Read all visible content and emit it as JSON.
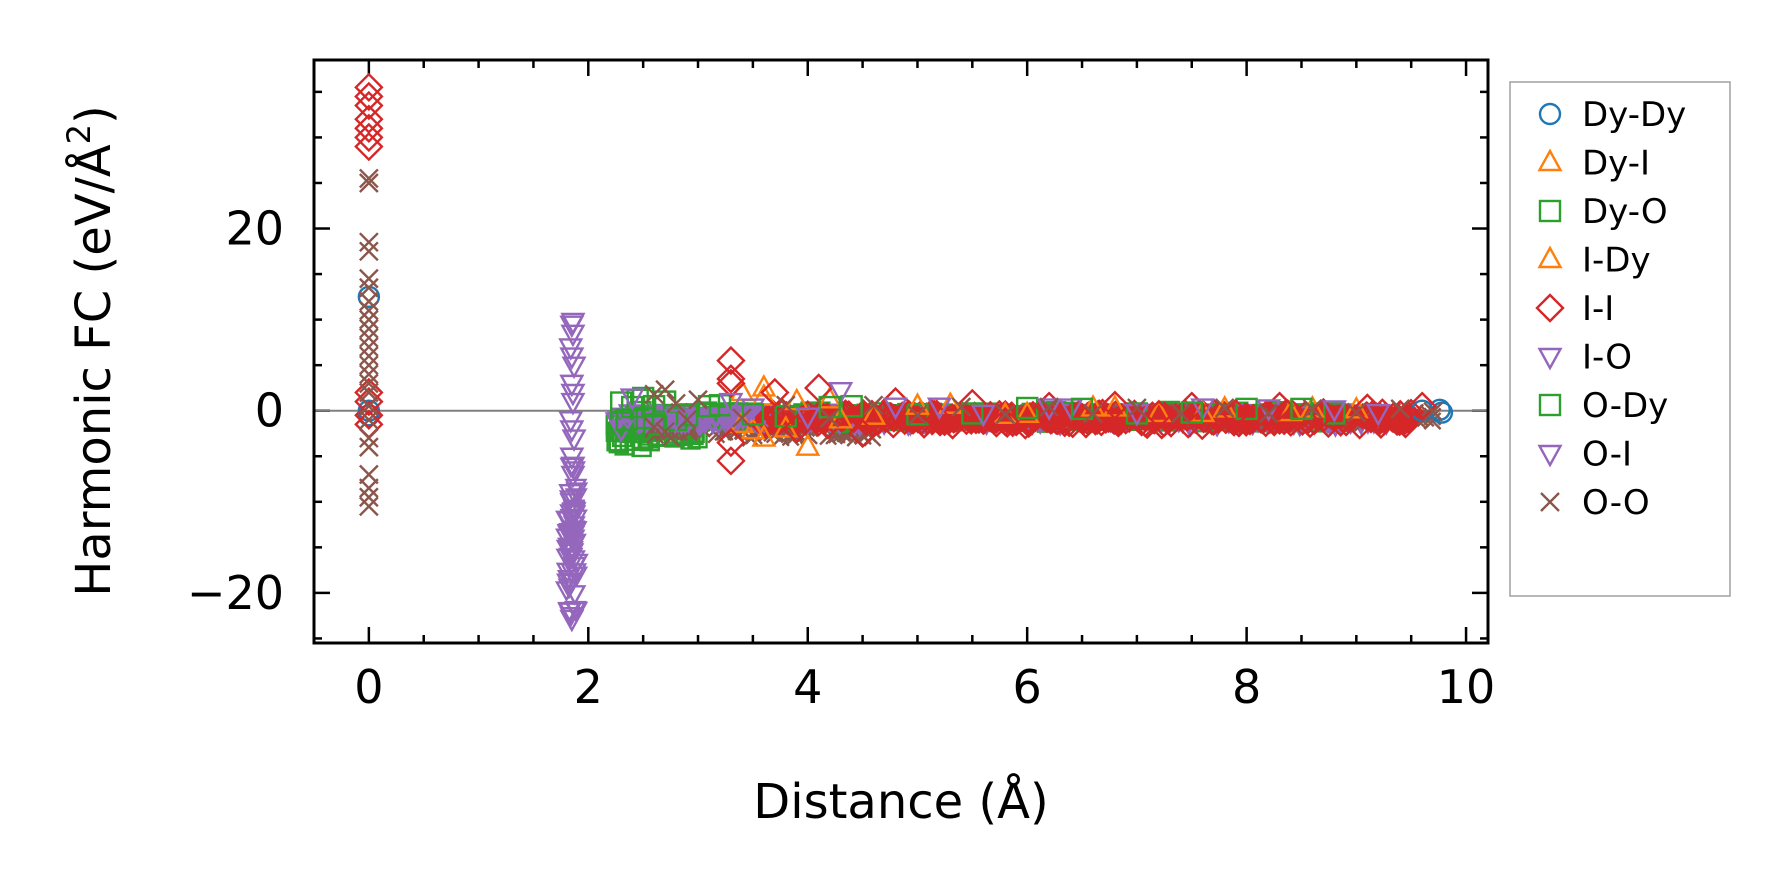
{
  "chart_data": {
    "type": "scatter",
    "xlabel": "Distance (Å)",
    "ylabel": "Harmonic FC (eV/Å²)",
    "ylabel_parts": {
      "main": "Harmonic FC (eV/Å",
      "sup": "2",
      "close": ")"
    },
    "xlim": [
      -0.5,
      10.2
    ],
    "ylim": [
      -25.5,
      38.5
    ],
    "xticks": [
      0,
      2,
      4,
      6,
      8,
      10
    ],
    "xtick_labels": [
      "0",
      "2",
      "4",
      "6",
      "8",
      "10"
    ],
    "yticks": [
      -20,
      0,
      20
    ],
    "ytick_labels": [
      "−20",
      "0",
      "20"
    ],
    "hline": 0,
    "legend_position": "outside right",
    "series": [
      {
        "name": "Dy-Dy",
        "marker": "circle",
        "color": "#1f77b4",
        "points": [
          [
            0,
            12.5
          ],
          [
            0,
            0
          ],
          [
            0,
            -0.5
          ],
          [
            9.78,
            -0.2
          ],
          [
            9.76,
            0.1
          ],
          [
            9.6,
            0.0
          ]
        ]
      },
      {
        "name": "Dy-I",
        "marker": "triangle-up",
        "color": "#ff7f0e",
        "points": [
          [
            3.4,
            2.0
          ],
          [
            3.5,
            -2.2
          ],
          [
            3.6,
            -3.0
          ],
          [
            3.6,
            2.5
          ],
          [
            3.8,
            -2.0
          ],
          [
            4.0,
            -4.0
          ],
          [
            4.2,
            1.2
          ],
          [
            4.6,
            -0.6
          ],
          [
            5.3,
            0.6
          ],
          [
            6.0,
            -0.4
          ],
          [
            6.6,
            0.3
          ],
          [
            7.2,
            -0.3
          ],
          [
            7.8,
            0.2
          ],
          [
            8.4,
            -0.2
          ],
          [
            9.0,
            0.1
          ]
        ]
      },
      {
        "name": "Dy-O",
        "marker": "square",
        "color": "#2ca02c",
        "points": [
          [
            2.3,
            0.9
          ],
          [
            2.3,
            -1.3
          ],
          [
            2.4,
            0.4
          ],
          [
            2.5,
            -0.8
          ],
          [
            2.5,
            1.4
          ],
          [
            2.6,
            -1.5
          ],
          [
            2.7,
            1.0
          ],
          [
            2.9,
            -0.5
          ],
          [
            3.2,
            0.6
          ],
          [
            3.8,
            -0.6
          ],
          [
            4.4,
            0.5
          ],
          [
            5.0,
            -0.4
          ],
          [
            6.0,
            0.3
          ],
          [
            7.0,
            -0.3
          ],
          [
            8.0,
            0.2
          ],
          [
            8.8,
            -0.3
          ]
        ]
      },
      {
        "name": "I-Dy",
        "marker": "triangle-up",
        "color": "#ff7f0e",
        "points": [
          [
            3.4,
            -1.5
          ],
          [
            3.6,
            1.5
          ],
          [
            3.9,
            1.0
          ],
          [
            4.3,
            -1.0
          ],
          [
            5.0,
            0.5
          ],
          [
            5.8,
            -0.5
          ],
          [
            6.8,
            0.3
          ],
          [
            7.6,
            -0.3
          ],
          [
            8.6,
            0.2
          ]
        ]
      },
      {
        "name": "I-I",
        "marker": "diamond",
        "color": "#d62728",
        "points": [
          [
            0,
            35.5
          ],
          [
            0,
            34.5
          ],
          [
            0,
            33.5
          ],
          [
            0,
            32.0
          ],
          [
            0,
            31.0
          ],
          [
            0,
            30.0
          ],
          [
            0,
            29.0
          ],
          [
            0,
            2.0
          ],
          [
            0,
            1.0
          ],
          [
            0,
            -0.5
          ],
          [
            0,
            -1.5
          ],
          [
            3.3,
            5.5
          ],
          [
            3.3,
            3.5
          ],
          [
            3.3,
            3.0
          ],
          [
            3.3,
            -3.5
          ],
          [
            3.3,
            -5.5
          ],
          [
            3.7,
            2.0
          ],
          [
            3.9,
            -2.0
          ],
          [
            4.1,
            2.5
          ],
          [
            4.5,
            -2.5
          ],
          [
            4.8,
            1.0
          ],
          [
            5.2,
            -1.0
          ],
          [
            5.5,
            0.8
          ],
          [
            5.8,
            -1.2
          ],
          [
            6.2,
            0.5
          ],
          [
            6.5,
            -0.8
          ],
          [
            6.8,
            0.6
          ],
          [
            7.2,
            -0.4
          ],
          [
            7.5,
            0.5
          ],
          [
            7.9,
            -0.3
          ],
          [
            8.3,
            0.5
          ],
          [
            8.7,
            -0.2
          ],
          [
            9.1,
            0.3
          ],
          [
            9.4,
            -0.4
          ],
          [
            9.6,
            0.5
          ]
        ]
      },
      {
        "name": "I-O",
        "marker": "triangle-down",
        "color": "#9467bd",
        "points": [
          [
            1.85,
            9.5
          ],
          [
            1.86,
            8.5
          ],
          [
            1.84,
            7.0
          ],
          [
            1.87,
            5.0
          ],
          [
            1.85,
            3.0
          ],
          [
            1.86,
            1.0
          ],
          [
            1.84,
            -1.0
          ],
          [
            1.87,
            -3.0
          ],
          [
            1.85,
            -5.0
          ],
          [
            1.86,
            -7.0
          ],
          [
            1.84,
            -9.0
          ],
          [
            1.87,
            -11.0
          ],
          [
            1.86,
            -13.0
          ],
          [
            1.85,
            -15.5
          ],
          [
            1.87,
            -17.0
          ],
          [
            1.83,
            -22.0
          ],
          [
            1.85,
            -22.8
          ],
          [
            2.3,
            -2.0
          ],
          [
            3.5,
            0.4
          ],
          [
            4.3,
            2.2
          ],
          [
            5.2,
            0.5
          ],
          [
            6.4,
            0.4
          ],
          [
            7.6,
            0.4
          ],
          [
            8.8,
            0.2
          ]
        ]
      },
      {
        "name": "O-Dy",
        "marker": "square",
        "color": "#2ca02c",
        "points": [
          [
            2.35,
            -1.0
          ],
          [
            2.45,
            1.2
          ],
          [
            2.6,
            0.5
          ],
          [
            2.8,
            -1.0
          ],
          [
            3.1,
            0.5
          ],
          [
            3.5,
            -0.4
          ],
          [
            4.2,
            0.4
          ],
          [
            5.5,
            -0.3
          ],
          [
            6.5,
            0.2
          ],
          [
            7.5,
            -0.2
          ],
          [
            8.5,
            0.2
          ]
        ]
      },
      {
        "name": "O-I",
        "marker": "triangle-down",
        "color": "#9467bd",
        "points": [
          [
            1.86,
            9.8
          ],
          [
            1.85,
            6.0
          ],
          [
            1.86,
            2.0
          ],
          [
            1.85,
            -2.0
          ],
          [
            1.86,
            -6.0
          ],
          [
            1.85,
            -10.0
          ],
          [
            1.86,
            -14.0
          ],
          [
            1.84,
            -16.0
          ],
          [
            2.4,
            1.5
          ],
          [
            2.8,
            -0.8
          ],
          [
            3.3,
            1.0
          ],
          [
            4.0,
            -0.6
          ],
          [
            4.8,
            0.5
          ],
          [
            5.6,
            -0.3
          ],
          [
            6.2,
            0.4
          ],
          [
            7.0,
            -0.2
          ],
          [
            8.2,
            0.3
          ],
          [
            9.2,
            -0.2
          ]
        ]
      },
      {
        "name": "O-O",
        "marker": "x",
        "color": "#8c564b",
        "points": [
          [
            0,
            25.5
          ],
          [
            0,
            25.0
          ],
          [
            0,
            18.5
          ],
          [
            0,
            17.5
          ],
          [
            0,
            14.5
          ],
          [
            0,
            13.5
          ],
          [
            0,
            12.0
          ],
          [
            0,
            11.0
          ],
          [
            0,
            10.0
          ],
          [
            0,
            9.0
          ],
          [
            0,
            8.0
          ],
          [
            0,
            7.0
          ],
          [
            0,
            6.0
          ],
          [
            0,
            5.0
          ],
          [
            0,
            4.0
          ],
          [
            0,
            3.0
          ],
          [
            0,
            2.0
          ],
          [
            0,
            0.5
          ],
          [
            0,
            -1.0
          ],
          [
            0,
            -3.0
          ],
          [
            0,
            -4.0
          ],
          [
            0,
            -7.0
          ],
          [
            0,
            -8.5
          ],
          [
            0,
            -9.5
          ],
          [
            0,
            -10.5
          ],
          [
            2.6,
            1.8
          ],
          [
            2.6,
            -1.8
          ],
          [
            2.7,
            2.3
          ],
          [
            2.7,
            -2.3
          ],
          [
            2.8,
            0.8
          ],
          [
            2.9,
            -1.0
          ],
          [
            3.0,
            1.2
          ],
          [
            3.4,
            -0.8
          ],
          [
            3.8,
            0.6
          ],
          [
            4.2,
            -0.8
          ],
          [
            4.6,
            0.6
          ],
          [
            5.0,
            -0.5
          ],
          [
            5.4,
            0.4
          ],
          [
            5.8,
            -0.4
          ],
          [
            6.2,
            0.4
          ],
          [
            6.6,
            -0.3
          ],
          [
            7.0,
            0.3
          ],
          [
            7.4,
            -0.3
          ],
          [
            7.8,
            0.3
          ],
          [
            8.2,
            -0.3
          ],
          [
            8.6,
            0.2
          ],
          [
            9.0,
            -0.2
          ],
          [
            9.4,
            0.2
          ],
          [
            9.7,
            -0.1
          ]
        ]
      }
    ],
    "dense_bands": [
      {
        "series": "Dy-O",
        "x_range": [
          2.25,
          3.0
        ],
        "y_range": [
          -2.0,
          2.0
        ]
      },
      {
        "series": "O-O",
        "x_range": [
          2.5,
          4.6
        ],
        "y_range": [
          -1.6,
          1.6
        ]
      },
      {
        "series": "Dy-O",
        "x_range": [
          3.0,
          9.0
        ],
        "y_range": [
          -0.7,
          0.7
        ]
      },
      {
        "series": "O-I",
        "x_range": [
          2.25,
          9.3
        ],
        "y_range": [
          -0.8,
          0.8
        ]
      },
      {
        "series": "O-O",
        "x_range": [
          4.6,
          9.7
        ],
        "y_range": [
          -0.7,
          0.7
        ]
      },
      {
        "series": "I-I",
        "x_range": [
          3.6,
          9.5
        ],
        "y_range": [
          -0.9,
          0.9
        ]
      },
      {
        "series": "I-O",
        "x_range": [
          1.8,
          1.9
        ],
        "y_range": [
          -12.0,
          9.0
        ]
      }
    ]
  }
}
